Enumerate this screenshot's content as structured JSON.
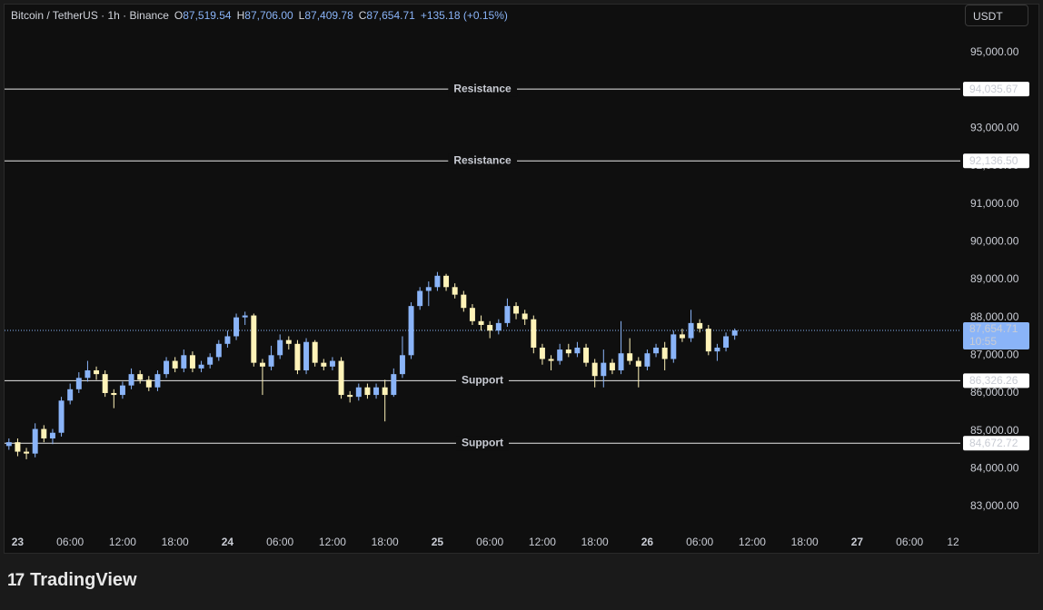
{
  "chart_data": {
    "type": "candlestick",
    "title": "Bitcoin / TetherUS · 1h · Binance",
    "ohlc_legend": [
      {
        "key": "O",
        "value": 87519.54,
        "label": "87,519.54"
      },
      {
        "key": "H",
        "value": 87706,
        "label": "87,706.00"
      },
      {
        "key": "L",
        "value": 87409.78,
        "label": "87,409.78"
      },
      {
        "key": "C",
        "value": 87654.71,
        "label": "87,654.71"
      }
    ],
    "change": "+135.18 (+0.15%)",
    "currency": "USDT",
    "up_color": "#8ab4f8",
    "down_color": "#fff3b8",
    "x": [
      -1,
      0,
      1,
      2,
      3,
      4,
      5,
      6,
      7,
      8,
      9,
      10,
      11,
      12,
      13,
      14,
      15,
      16,
      17,
      18,
      19,
      20,
      21,
      22,
      23,
      24,
      25,
      26,
      27,
      28,
      29,
      30,
      31,
      32,
      33,
      34,
      35,
      36,
      37,
      38,
      39,
      40,
      41,
      42,
      43,
      44,
      45,
      46,
      47,
      48,
      49,
      50,
      51,
      52,
      53,
      54,
      55,
      56,
      57,
      58,
      59,
      60,
      61,
      62,
      63,
      64,
      65,
      66,
      67,
      68,
      69,
      70,
      71,
      72,
      73,
      74,
      75,
      76,
      77,
      78,
      79,
      80,
      81,
      82
    ],
    "opens": [
      84600,
      84700,
      84450,
      84400,
      85050,
      84800,
      84950,
      85800,
      86100,
      86400,
      86600,
      86500,
      86000,
      85950,
      86200,
      86500,
      86350,
      86150,
      86500,
      86850,
      86650,
      87000,
      86650,
      86750,
      86950,
      87300,
      87500,
      88000,
      88050,
      86800,
      86700,
      87000,
      87400,
      87300,
      86600,
      87350,
      86800,
      86700,
      86850,
      85950,
      85900,
      86150,
      85950,
      86150,
      85950,
      86500,
      87000,
      88300,
      88700,
      88800,
      89100,
      88800,
      88600,
      88250,
      87900,
      87800,
      87650,
      87850,
      88300,
      88100,
      87950,
      87200,
      86900,
      86850,
      87150,
      87050,
      87200,
      86800,
      86450,
      86800,
      86600,
      87050,
      86850,
      86700,
      87050,
      87200,
      86900,
      87550,
      87450,
      87850,
      87700,
      87100,
      87200,
      87519.54
    ],
    "highs": [
      84800,
      84800,
      84550,
      85200,
      85150,
      85050,
      85900,
      86250,
      86550,
      86850,
      86700,
      86600,
      86100,
      86300,
      86650,
      86600,
      86450,
      86600,
      86950,
      86950,
      87150,
      87100,
      86850,
      87050,
      87400,
      87650,
      88100,
      88150,
      88100,
      86900,
      87250,
      87550,
      87500,
      87400,
      87450,
      87400,
      86900,
      86950,
      86950,
      86050,
      86250,
      86250,
      86250,
      86350,
      86650,
      87500,
      88400,
      88800,
      88950,
      89200,
      89150,
      88900,
      88700,
      88350,
      88050,
      87900,
      87950,
      88500,
      88400,
      88200,
      88050,
      87300,
      87000,
      87300,
      87300,
      87350,
      87300,
      86900,
      87150,
      86900,
      87900,
      87450,
      86950,
      87150,
      87300,
      87350,
      87650,
      87700,
      88200,
      87950,
      87800,
      87300,
      87600,
      87706
    ],
    "lows": [
      84500,
      84330,
      84250,
      84300,
      84700,
      84650,
      84850,
      85700,
      86000,
      86300,
      86350,
      85900,
      85600,
      85850,
      86100,
      86250,
      86050,
      86050,
      86400,
      86550,
      86550,
      86550,
      86550,
      86650,
      86850,
      87200,
      87400,
      87800,
      86700,
      85950,
      86600,
      86900,
      87150,
      86500,
      86500,
      86700,
      86600,
      86600,
      85850,
      85750,
      85800,
      85850,
      85850,
      85250,
      85900,
      86400,
      86900,
      88200,
      88300,
      88700,
      88700,
      88500,
      88150,
      87800,
      87650,
      87450,
      87550,
      87750,
      87950,
      87800,
      87050,
      86750,
      86600,
      86750,
      86950,
      86950,
      86700,
      86150,
      86150,
      86500,
      86500,
      86750,
      86150,
      86600,
      86950,
      86600,
      86800,
      87350,
      87350,
      87600,
      87000,
      86850,
      87100,
      87409.78
    ],
    "closes": [
      84700,
      84450,
      84400,
      85050,
      84800,
      84950,
      85800,
      86100,
      86400,
      86600,
      86500,
      86000,
      85950,
      86200,
      86500,
      86350,
      86150,
      86500,
      86850,
      86650,
      87000,
      86650,
      86750,
      86950,
      87300,
      87500,
      88000,
      88050,
      86800,
      86700,
      87000,
      87400,
      87300,
      86600,
      87350,
      86800,
      86700,
      86850,
      85950,
      85900,
      86150,
      85950,
      86150,
      85950,
      86500,
      87000,
      88300,
      88700,
      88800,
      89100,
      88800,
      88600,
      88250,
      87900,
      87800,
      87650,
      87850,
      88300,
      88100,
      87950,
      87200,
      86900,
      86850,
      87150,
      87050,
      87200,
      86800,
      86450,
      86800,
      86600,
      87050,
      86850,
      86700,
      87050,
      87200,
      86900,
      87550,
      87450,
      87850,
      87700,
      87100,
      87200,
      87500,
      87654.71
    ],
    "levels": [
      {
        "name": "Resistance",
        "value": 94035.67,
        "label": "94,035.67"
      },
      {
        "name": "Resistance",
        "value": 92136.5,
        "label": "92,136.50"
      },
      {
        "name": "Support",
        "value": 86326.26,
        "label": "86,326.26"
      },
      {
        "name": "Support",
        "value": 84672.72,
        "label": "84,672.72"
      }
    ],
    "last_price": {
      "value": 87654.71,
      "label": "87,654.71",
      "countdown": "10:55",
      "color": "#8ab4f8"
    },
    "xlim": [
      -1.5,
      107.8
    ],
    "xticks": [
      {
        "value": 0,
        "label": "23"
      },
      {
        "value": 6,
        "label": "06:00"
      },
      {
        "value": 12,
        "label": "12:00"
      },
      {
        "value": 18,
        "label": "18:00"
      },
      {
        "value": 24,
        "label": "24"
      },
      {
        "value": 30,
        "label": "06:00"
      },
      {
        "value": 36,
        "label": "12:00"
      },
      {
        "value": 42,
        "label": "18:00"
      },
      {
        "value": 48,
        "label": "25"
      },
      {
        "value": 54,
        "label": "06:00"
      },
      {
        "value": 60,
        "label": "12:00"
      },
      {
        "value": 66,
        "label": "18:00"
      },
      {
        "value": 72,
        "label": "26"
      },
      {
        "value": 78,
        "label": "06:00"
      },
      {
        "value": 84,
        "label": "12:00"
      },
      {
        "value": 90,
        "label": "18:00"
      },
      {
        "value": 96,
        "label": "27"
      },
      {
        "value": 102,
        "label": "06:00"
      },
      {
        "value": 108,
        "label": "12"
      }
    ],
    "ylim": [
      82400,
      96270
    ],
    "yticks": [
      {
        "value": 83000,
        "label": "83,000.00"
      },
      {
        "value": 84000,
        "label": "84,000.00"
      },
      {
        "value": 85000,
        "label": "85,000.00"
      },
      {
        "value": 86000,
        "label": "86,000.00"
      },
      {
        "value": 87000,
        "label": "87,000.00"
      },
      {
        "value": 88000,
        "label": "88,000.00"
      },
      {
        "value": 89000,
        "label": "89,000.00"
      },
      {
        "value": 90000,
        "label": "90,000.00"
      },
      {
        "value": 91000,
        "label": "91,000.00"
      },
      {
        "value": 92000,
        "label": "92,000.00"
      },
      {
        "value": 93000,
        "label": "93,000.00"
      },
      {
        "value": 94000,
        "label": "94,000.00"
      },
      {
        "value": 95000,
        "label": "95,000.00"
      }
    ]
  },
  "brand": "TradingView"
}
